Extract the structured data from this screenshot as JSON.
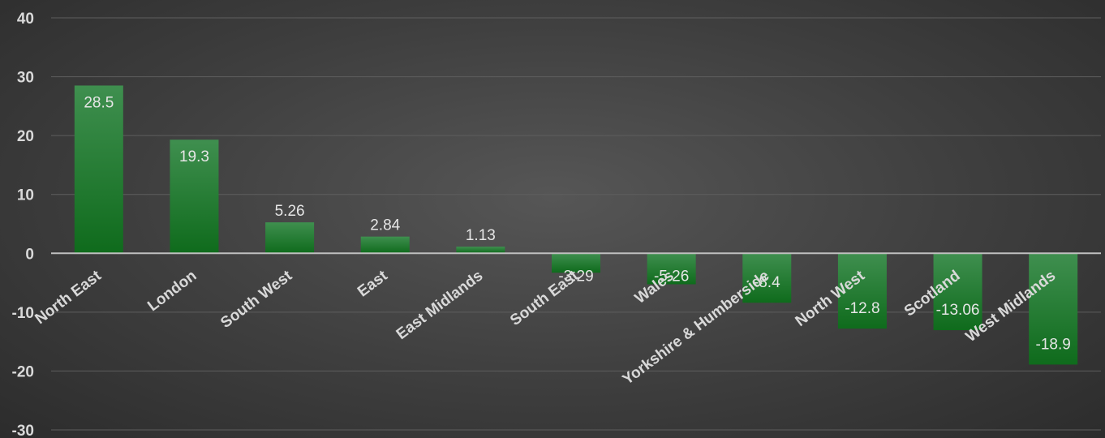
{
  "chart_data": {
    "type": "bar",
    "categories": [
      "North East",
      "London",
      "South West",
      "East",
      "East Midlands",
      "South East",
      "Wales",
      "Yorkshire & Humberside",
      "North West",
      "Scotland",
      "West Midlands"
    ],
    "values": [
      28.5,
      19.3,
      5.26,
      2.84,
      1.13,
      -3.29,
      -5.26,
      -8.4,
      -12.8,
      -13.06,
      -18.9
    ],
    "data_labels": [
      "28.5",
      "19.3",
      "5.26",
      "2.84",
      "1.13",
      "-3.29",
      "-5.26",
      "-8.4",
      "-12.8",
      "-13.06",
      "-18.9"
    ],
    "title": "",
    "xlabel": "",
    "ylabel": "",
    "ylim": [
      -30,
      40
    ],
    "yticks": [
      40,
      30,
      20,
      10,
      0,
      -10,
      -20,
      -30
    ],
    "grid": true,
    "legend": "none",
    "colors": {
      "bar_top": "#3f8f4f",
      "bar_bottom": "#0f6b1c",
      "gridline": "#5e5e5e",
      "zero_line": "#bfbfbf",
      "text": "#d9d9d9"
    }
  }
}
